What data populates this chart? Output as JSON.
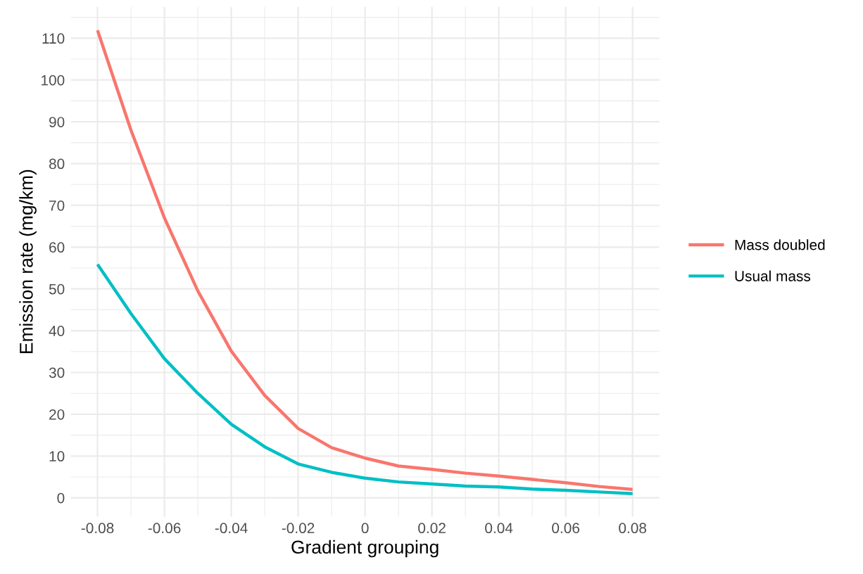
{
  "chart_data": {
    "type": "line",
    "xlabel": "Gradient grouping",
    "ylabel": "Emission rate (mg/km)",
    "x": [
      -0.08,
      -0.07,
      -0.06,
      -0.05,
      -0.04,
      -0.03,
      -0.02,
      -0.01,
      0,
      0.01,
      0.02,
      0.03,
      0.04,
      0.05,
      0.06,
      0.07,
      0.08
    ],
    "series": [
      {
        "name": "Mass doubled",
        "color": "#f8766d",
        "values": [
          111.9,
          88,
          67,
          49.5,
          35.1,
          24.5,
          16.6,
          12,
          9.5,
          7.6,
          6.8,
          5.9,
          5.2,
          4.4,
          3.6,
          2.7,
          2.0
        ]
      },
      {
        "name": "Usual mass",
        "color": "#00bfc4",
        "values": [
          55.9,
          44.1,
          33.3,
          25,
          17.6,
          12.2,
          8.1,
          6.1,
          4.7,
          3.8,
          3.3,
          2.8,
          2.6,
          2.1,
          1.8,
          1.4,
          1.0
        ]
      }
    ],
    "xlim": [
      -0.088,
      0.088
    ],
    "ylim": [
      -4.5,
      117.5
    ],
    "xticks": [
      -0.08,
      -0.06,
      -0.04,
      -0.02,
      0,
      0.02,
      0.04,
      0.06,
      0.08
    ],
    "yticks": [
      0,
      10,
      20,
      30,
      40,
      50,
      60,
      70,
      80,
      90,
      100,
      110
    ],
    "grid": true,
    "legend": "right"
  }
}
